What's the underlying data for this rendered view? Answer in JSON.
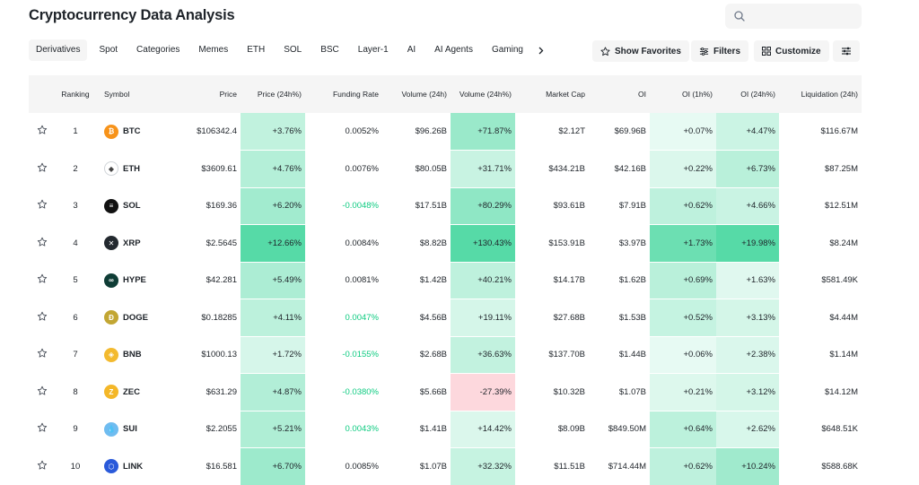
{
  "header": {
    "title": "Cryptocurrency Data Analysis"
  },
  "search": {
    "value": "",
    "placeholder": ""
  },
  "tabs": [
    {
      "label": "Derivatives",
      "active": true
    },
    {
      "label": "Spot"
    },
    {
      "label": "Categories"
    },
    {
      "label": "Memes"
    },
    {
      "label": "ETH"
    },
    {
      "label": "SOL"
    },
    {
      "label": "BSC"
    },
    {
      "label": "Layer-1"
    },
    {
      "label": "AI"
    },
    {
      "label": "AI Agents"
    },
    {
      "label": "Gaming"
    }
  ],
  "toolbar": {
    "show_favorites": "Show Favorites",
    "filters": "Filters",
    "customize": "Customize"
  },
  "columns": {
    "ranking": "Ranking",
    "symbol": "Symbol",
    "price": "Price",
    "price_24h": "Price (24h%)",
    "funding_rate": "Funding Rate",
    "volume_24h": "Volume (24h)",
    "volume_24h_pct": "Volume (24h%)",
    "market_cap": "Market Cap",
    "oi": "OI",
    "oi_1h": "OI (1h%)",
    "oi_24h": "OI (24h%)",
    "liquidation_24h": "Liquidation (24h)"
  },
  "colors": {
    "positive_text": "#0ecb81",
    "negative_text": "#f6465d"
  },
  "rows": [
    {
      "rank": "1",
      "symbol": "BTC",
      "icon": "bitcoin-icon",
      "icon_color": "#f7931a",
      "icon_glyph": "₿",
      "price": "$106342.4",
      "price_24h": "+3.76%",
      "price_24h_level": 0.29,
      "funding": "0.0052%",
      "funding_sign": "neutral",
      "volume": "$96.26B",
      "volume_pct": "+71.87%",
      "volume_pct_level": 0.55,
      "market_cap": "$2.12T",
      "oi": "$69.96B",
      "oi_1h": "+0.07%",
      "oi_1h_level": 0.03,
      "oi_24h": "+4.47%",
      "oi_24h_level": 0.22,
      "liquidation": "$116.67M"
    },
    {
      "rank": "2",
      "symbol": "ETH",
      "icon": "ethereum-icon",
      "icon_color": "#ffffff",
      "icon_glyph": "◆",
      "price": "$3609.61",
      "price_24h": "+4.76%",
      "price_24h_level": 0.37,
      "funding": "0.0076%",
      "funding_sign": "neutral",
      "volume": "$80.05B",
      "volume_pct": "+31.71%",
      "volume_pct_level": 0.24,
      "market_cap": "$434.21B",
      "oi": "$42.16B",
      "oi_1h": "+0.22%",
      "oi_1h_level": 0.11,
      "oi_24h": "+6.73%",
      "oi_24h_level": 0.34,
      "liquidation": "$87.25M"
    },
    {
      "rank": "3",
      "symbol": "SOL",
      "icon": "solana-icon",
      "icon_color": "#111111",
      "icon_glyph": "≡",
      "price": "$169.36",
      "price_24h": "+6.20%",
      "price_24h_level": 0.49,
      "funding": "-0.0048%",
      "funding_sign": "positive",
      "volume": "$17.51B",
      "volume_pct": "+80.29%",
      "volume_pct_level": 0.62,
      "market_cap": "$93.61B",
      "oi": "$7.91B",
      "oi_1h": "+0.62%",
      "oi_1h_level": 0.31,
      "oi_24h": "+4.66%",
      "oi_24h_level": 0.23,
      "liquidation": "$12.51M"
    },
    {
      "rank": "4",
      "symbol": "XRP",
      "icon": "xrp-icon",
      "icon_color": "#23292f",
      "icon_glyph": "✕",
      "price": "$2.5645",
      "price_24h": "+12.66%",
      "price_24h_level": 1.0,
      "funding": "0.0084%",
      "funding_sign": "neutral",
      "volume": "$8.82B",
      "volume_pct": "+130.43%",
      "volume_pct_level": 1.0,
      "market_cap": "$153.91B",
      "oi": "$3.97B",
      "oi_1h": "+1.73%",
      "oi_1h_level": 0.86,
      "oi_24h": "+19.98%",
      "oi_24h_level": 1.0,
      "liquidation": "$8.24M"
    },
    {
      "rank": "5",
      "symbol": "HYPE",
      "icon": "hyperliquid-icon",
      "icon_color": "#0f3d36",
      "icon_glyph": "∞",
      "price": "$42.281",
      "price_24h": "+5.49%",
      "price_24h_level": 0.43,
      "funding": "0.0081%",
      "funding_sign": "neutral",
      "volume": "$1.42B",
      "volume_pct": "+40.21%",
      "volume_pct_level": 0.31,
      "market_cap": "$14.17B",
      "oi": "$1.62B",
      "oi_1h": "+0.69%",
      "oi_1h_level": 0.34,
      "oi_24h": "+1.63%",
      "oi_24h_level": 0.08,
      "liquidation": "$581.49K"
    },
    {
      "rank": "6",
      "symbol": "DOGE",
      "icon": "dogecoin-icon",
      "icon_color": "#c2a633",
      "icon_glyph": "Ð",
      "price": "$0.18285",
      "price_24h": "+4.11%",
      "price_24h_level": 0.32,
      "funding": "0.0047%",
      "funding_sign": "positive",
      "volume": "$4.56B",
      "volume_pct": "+19.11%",
      "volume_pct_level": 0.15,
      "market_cap": "$27.68B",
      "oi": "$1.53B",
      "oi_1h": "+0.52%",
      "oi_1h_level": 0.26,
      "oi_24h": "+3.13%",
      "oi_24h_level": 0.16,
      "liquidation": "$4.44M"
    },
    {
      "rank": "7",
      "symbol": "BNB",
      "icon": "bnb-icon",
      "icon_color": "#f3ba2f",
      "icon_glyph": "◈",
      "price": "$1000.13",
      "price_24h": "+1.72%",
      "price_24h_level": 0.14,
      "funding": "-0.0155%",
      "funding_sign": "positive",
      "volume": "$2.68B",
      "volume_pct": "+36.63%",
      "volume_pct_level": 0.28,
      "market_cap": "$137.70B",
      "oi": "$1.44B",
      "oi_1h": "+0.06%",
      "oi_1h_level": 0.03,
      "oi_24h": "+2.38%",
      "oi_24h_level": 0.12,
      "liquidation": "$1.14M"
    },
    {
      "rank": "8",
      "symbol": "ZEC",
      "icon": "zcash-icon",
      "icon_color": "#f4b728",
      "icon_glyph": "Z",
      "price": "$631.29",
      "price_24h": "+4.87%",
      "price_24h_level": 0.38,
      "funding": "-0.0380%",
      "funding_sign": "positive",
      "volume": "$5.66B",
      "volume_pct": "-27.39%",
      "volume_pct_level": -0.6,
      "market_cap": "$10.32B",
      "oi": "$1.07B",
      "oi_1h": "+0.21%",
      "oi_1h_level": 0.1,
      "oi_24h": "+3.12%",
      "oi_24h_level": 0.16,
      "liquidation": "$14.12M"
    },
    {
      "rank": "9",
      "symbol": "SUI",
      "icon": "sui-icon",
      "icon_color": "#6fbcf0",
      "icon_glyph": "💧",
      "price": "$2.2055",
      "price_24h": "+5.21%",
      "price_24h_level": 0.41,
      "funding": "0.0043%",
      "funding_sign": "positive",
      "volume": "$1.41B",
      "volume_pct": "+14.42%",
      "volume_pct_level": 0.11,
      "market_cap": "$8.09B",
      "oi": "$849.50M",
      "oi_1h": "+0.64%",
      "oi_1h_level": 0.32,
      "oi_24h": "+2.62%",
      "oi_24h_level": 0.13,
      "liquidation": "$648.51K"
    },
    {
      "rank": "10",
      "symbol": "LINK",
      "icon": "chainlink-icon",
      "icon_color": "#2a5ada",
      "icon_glyph": "⬡",
      "price": "$16.581",
      "price_24h": "+6.70%",
      "price_24h_level": 0.53,
      "funding": "0.0085%",
      "funding_sign": "neutral",
      "volume": "$1.07B",
      "volume_pct": "+32.32%",
      "volume_pct_level": 0.25,
      "market_cap": "$11.51B",
      "oi": "$714.44M",
      "oi_1h": "+0.62%",
      "oi_1h_level": 0.31,
      "oi_24h": "+10.24%",
      "oi_24h_level": 0.51,
      "liquidation": "$588.68K"
    }
  ]
}
